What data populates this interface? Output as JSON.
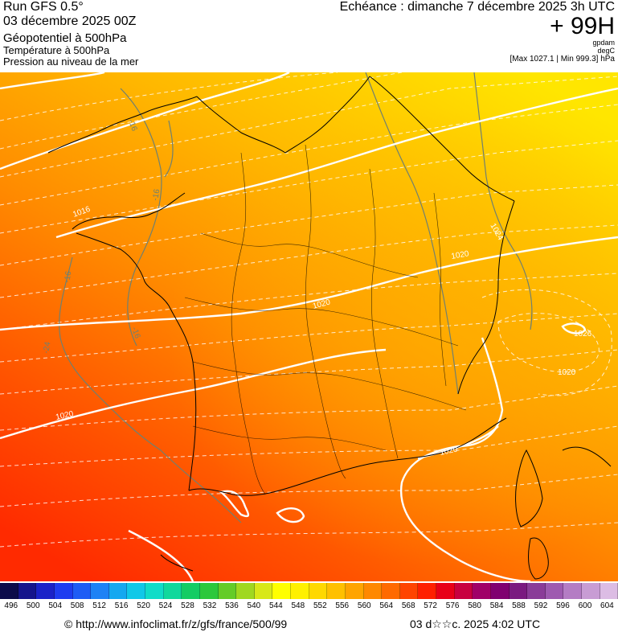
{
  "header": {
    "run_title": "Run GFS 0.5°",
    "run_date": "03 décembre 2025 00Z",
    "param_main": "Géopotentiel à 500hPa",
    "param_temp": "Température à 500hPa",
    "param_pressure": "Pression au niveau de la mer",
    "valid_time": "Echéance : dimanche 7 décembre 2025 3h UTC",
    "lead_time": "+ 99H",
    "unit_geopot": "gpdam",
    "unit_temp": "degC",
    "maxmin": "[Max 1027.1 | Min 999.3] hPa"
  },
  "map": {
    "isobar_labels": [
      "1016",
      "1020",
      "1020",
      "1020",
      "1020",
      "1020",
      "1024",
      "1026"
    ],
    "isotherm_labels": [
      "-16",
      "-16",
      "-16",
      "-16",
      "-24"
    ],
    "colors": {
      "geopot_high": "#ffe600",
      "geopot_mid": "#ffa000",
      "geopot_low": "#ff2a00",
      "coast": "#000000",
      "isobar": "#ffffff",
      "isotherm": "#708070"
    }
  },
  "scale": {
    "labels": [
      "496",
      "500",
      "504",
      "508",
      "512",
      "516",
      "520",
      "524",
      "528",
      "532",
      "536",
      "540",
      "544",
      "548",
      "552",
      "556",
      "560",
      "564",
      "568",
      "572",
      "576",
      "580",
      "584",
      "588",
      "592",
      "596",
      "600",
      "604"
    ],
    "colors": [
      "#0b0b4a",
      "#14148c",
      "#1a22c8",
      "#1e3cf0",
      "#1e5cf5",
      "#1e82f5",
      "#14a8f0",
      "#10c8e8",
      "#10dcc8",
      "#10d89c",
      "#14cc64",
      "#2cc83c",
      "#64cc28",
      "#a0d820",
      "#d8e818",
      "#ffff00",
      "#fff000",
      "#ffd800",
      "#ffc000",
      "#ffa400",
      "#ff8800",
      "#ff6a00",
      "#ff4400",
      "#ff2000",
      "#e80018",
      "#c80040",
      "#a00068",
      "#800070",
      "#7a1a80",
      "#8a3c98",
      "#9e5ab0",
      "#b47cc4",
      "#c89cd4",
      "#dcbce4"
    ]
  },
  "footer": {
    "credit": "© http://www.infoclimat.fr/z/gfs/france/500/99",
    "generated": "03 d☆☆c. 2025  4:02 UTC"
  }
}
